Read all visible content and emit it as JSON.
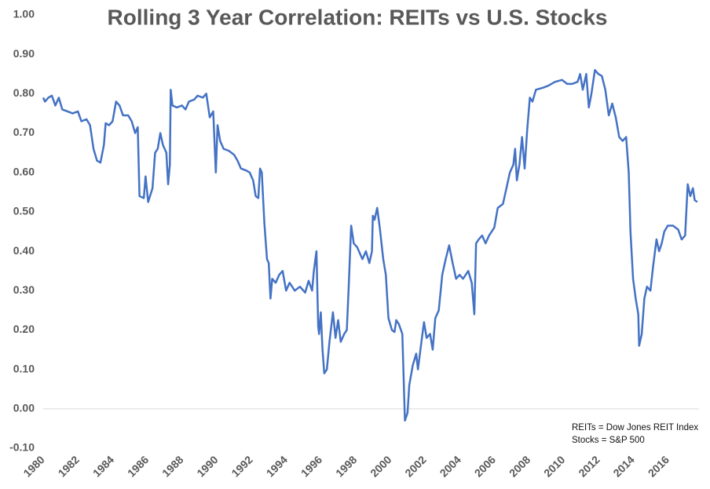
{
  "chart_data": {
    "type": "line",
    "title": "Rolling 3 Year Correlation: REITs vs U.S. Stocks",
    "annotations": [
      "REITs = Dow Jones REIT Index",
      "Stocks = S&P 500"
    ],
    "x": [
      1980.0,
      1980.1,
      1980.3,
      1980.5,
      1980.7,
      1980.9,
      1981.1,
      1981.4,
      1981.7,
      1982.0,
      1982.2,
      1982.5,
      1982.7,
      1982.9,
      1983.1,
      1983.3,
      1983.5,
      1983.6,
      1983.8,
      1984.0,
      1984.2,
      1984.4,
      1984.6,
      1984.9,
      1985.1,
      1985.3,
      1985.45,
      1985.55,
      1985.8,
      1985.9,
      1986.05,
      1986.3,
      1986.45,
      1986.6,
      1986.75,
      1986.9,
      1987.1,
      1987.2,
      1987.3,
      1987.35,
      1987.45,
      1987.7,
      1988.0,
      1988.2,
      1988.4,
      1988.7,
      1988.9,
      1989.2,
      1989.4,
      1989.6,
      1989.8,
      1989.95,
      1990.05,
      1990.2,
      1990.4,
      1990.7,
      1991.0,
      1991.2,
      1991.4,
      1991.7,
      1991.9,
      1992.1,
      1992.25,
      1992.4,
      1992.5,
      1992.6,
      1992.75,
      1992.9,
      1993.0,
      1993.1,
      1993.2,
      1993.4,
      1993.6,
      1993.8,
      1994.0,
      1994.2,
      1994.5,
      1994.8,
      1995.1,
      1995.3,
      1995.5,
      1995.6,
      1995.75,
      1995.85,
      1995.9,
      1996.0,
      1996.1,
      1996.2,
      1996.35,
      1996.5,
      1996.7,
      1996.85,
      1997.0,
      1997.15,
      1997.35,
      1997.5,
      1997.6,
      1997.75,
      1997.9,
      1998.1,
      1998.4,
      1998.6,
      1998.8,
      1998.95,
      1999.0,
      1999.1,
      1999.25,
      1999.4,
      1999.6,
      1999.75,
      1999.9,
      2000.1,
      2000.25,
      2000.35,
      2000.5,
      2000.7,
      2000.85,
      2001.0,
      2001.1,
      2001.3,
      2001.5,
      2001.6,
      2001.8,
      2001.95,
      2002.1,
      2002.3,
      2002.45,
      2002.6,
      2002.8,
      2003.0,
      2003.2,
      2003.4,
      2003.6,
      2003.8,
      2004.0,
      2004.2,
      2004.5,
      2004.7,
      2004.85,
      2004.95,
      2005.1,
      2005.3,
      2005.5,
      2005.7,
      2006.0,
      2006.2,
      2006.5,
      2006.7,
      2006.9,
      2007.1,
      2007.2,
      2007.3,
      2007.45,
      2007.6,
      2007.75,
      2007.9,
      2008.05,
      2008.2,
      2008.4,
      2008.8,
      2009.1,
      2009.5,
      2009.9,
      2010.2,
      2010.5,
      2010.8,
      2010.95,
      2011.1,
      2011.3,
      2011.45,
      2011.6,
      2011.8,
      2012.0,
      2012.2,
      2012.4,
      2012.6,
      2012.8,
      2013.0,
      2013.2,
      2013.4,
      2013.6,
      2013.75,
      2013.85,
      2014.0,
      2014.15,
      2014.3,
      2014.35,
      2014.5,
      2014.65,
      2014.8,
      2015.0,
      2015.15,
      2015.35,
      2015.5,
      2015.65,
      2015.8,
      2016.0,
      2016.3,
      2016.6,
      2016.8,
      2017.0,
      2017.15,
      2017.3,
      2017.45,
      2017.55,
      2017.7
    ],
    "series": [
      {
        "name": "Rolling 3 Year Correlation",
        "color": "#4472c4",
        "values": [
          0.79,
          0.78,
          0.79,
          0.795,
          0.77,
          0.79,
          0.76,
          0.755,
          0.75,
          0.755,
          0.73,
          0.735,
          0.72,
          0.66,
          0.63,
          0.625,
          0.67,
          0.725,
          0.72,
          0.73,
          0.78,
          0.77,
          0.745,
          0.745,
          0.73,
          0.7,
          0.715,
          0.54,
          0.535,
          0.59,
          0.525,
          0.56,
          0.65,
          0.66,
          0.7,
          0.67,
          0.65,
          0.57,
          0.62,
          0.81,
          0.77,
          0.765,
          0.77,
          0.76,
          0.78,
          0.785,
          0.795,
          0.79,
          0.8,
          0.74,
          0.755,
          0.6,
          0.72,
          0.68,
          0.66,
          0.655,
          0.645,
          0.63,
          0.61,
          0.605,
          0.6,
          0.58,
          0.54,
          0.535,
          0.61,
          0.6,
          0.47,
          0.38,
          0.37,
          0.28,
          0.33,
          0.32,
          0.34,
          0.35,
          0.3,
          0.32,
          0.3,
          0.31,
          0.295,
          0.325,
          0.3,
          0.35,
          0.4,
          0.21,
          0.19,
          0.245,
          0.15,
          0.09,
          0.1,
          0.17,
          0.245,
          0.18,
          0.225,
          0.17,
          0.19,
          0.2,
          0.3,
          0.465,
          0.42,
          0.41,
          0.38,
          0.4,
          0.37,
          0.4,
          0.49,
          0.48,
          0.51,
          0.46,
          0.38,
          0.34,
          0.23,
          0.2,
          0.195,
          0.225,
          0.215,
          0.19,
          -0.03,
          -0.01,
          0.06,
          0.11,
          0.14,
          0.1,
          0.17,
          0.22,
          0.18,
          0.19,
          0.15,
          0.23,
          0.25,
          0.34,
          0.38,
          0.415,
          0.37,
          0.33,
          0.34,
          0.33,
          0.35,
          0.32,
          0.24,
          0.42,
          0.43,
          0.44,
          0.42,
          0.44,
          0.46,
          0.51,
          0.52,
          0.56,
          0.6,
          0.62,
          0.66,
          0.58,
          0.62,
          0.69,
          0.61,
          0.71,
          0.79,
          0.78,
          0.81,
          0.815,
          0.82,
          0.83,
          0.835,
          0.825,
          0.825,
          0.83,
          0.85,
          0.81,
          0.85,
          0.765,
          0.8,
          0.86,
          0.85,
          0.845,
          0.81,
          0.745,
          0.775,
          0.74,
          0.69,
          0.68,
          0.69,
          0.6,
          0.45,
          0.33,
          0.28,
          0.24,
          0.16,
          0.19,
          0.28,
          0.31,
          0.3,
          0.36,
          0.43,
          0.4,
          0.42,
          0.45,
          0.465,
          0.465,
          0.455,
          0.43,
          0.44,
          0.57,
          0.54,
          0.56,
          0.53,
          0.525
        ]
      }
    ],
    "xlim": [
      1980,
      2017.8
    ],
    "xticks": [
      1980,
      1982,
      1984,
      1986,
      1988,
      1990,
      1992,
      1994,
      1996,
      1998,
      2000,
      2002,
      2004,
      2006,
      2008,
      2010,
      2012,
      2014,
      2016
    ],
    "ylim": [
      -0.1,
      1.0
    ],
    "yticks": [
      {
        "value": -0.1,
        "label": "-0.10"
      },
      {
        "value": 0,
        "label": "0.00"
      },
      {
        "value": 0.1,
        "label": "0.10"
      },
      {
        "value": 0.2,
        "label": "0.20"
      },
      {
        "value": 0.3,
        "label": "0.30"
      },
      {
        "value": 0.4,
        "label": "0.40"
      },
      {
        "value": 0.5,
        "label": "0.50"
      },
      {
        "value": 0.6,
        "label": "0.60"
      },
      {
        "value": 0.7,
        "label": "0.70"
      },
      {
        "value": 0.8,
        "label": "0.80"
      },
      {
        "value": 0.9,
        "label": "0.90"
      },
      {
        "value": 1.0,
        "label": "1.00"
      }
    ],
    "grid": false
  }
}
